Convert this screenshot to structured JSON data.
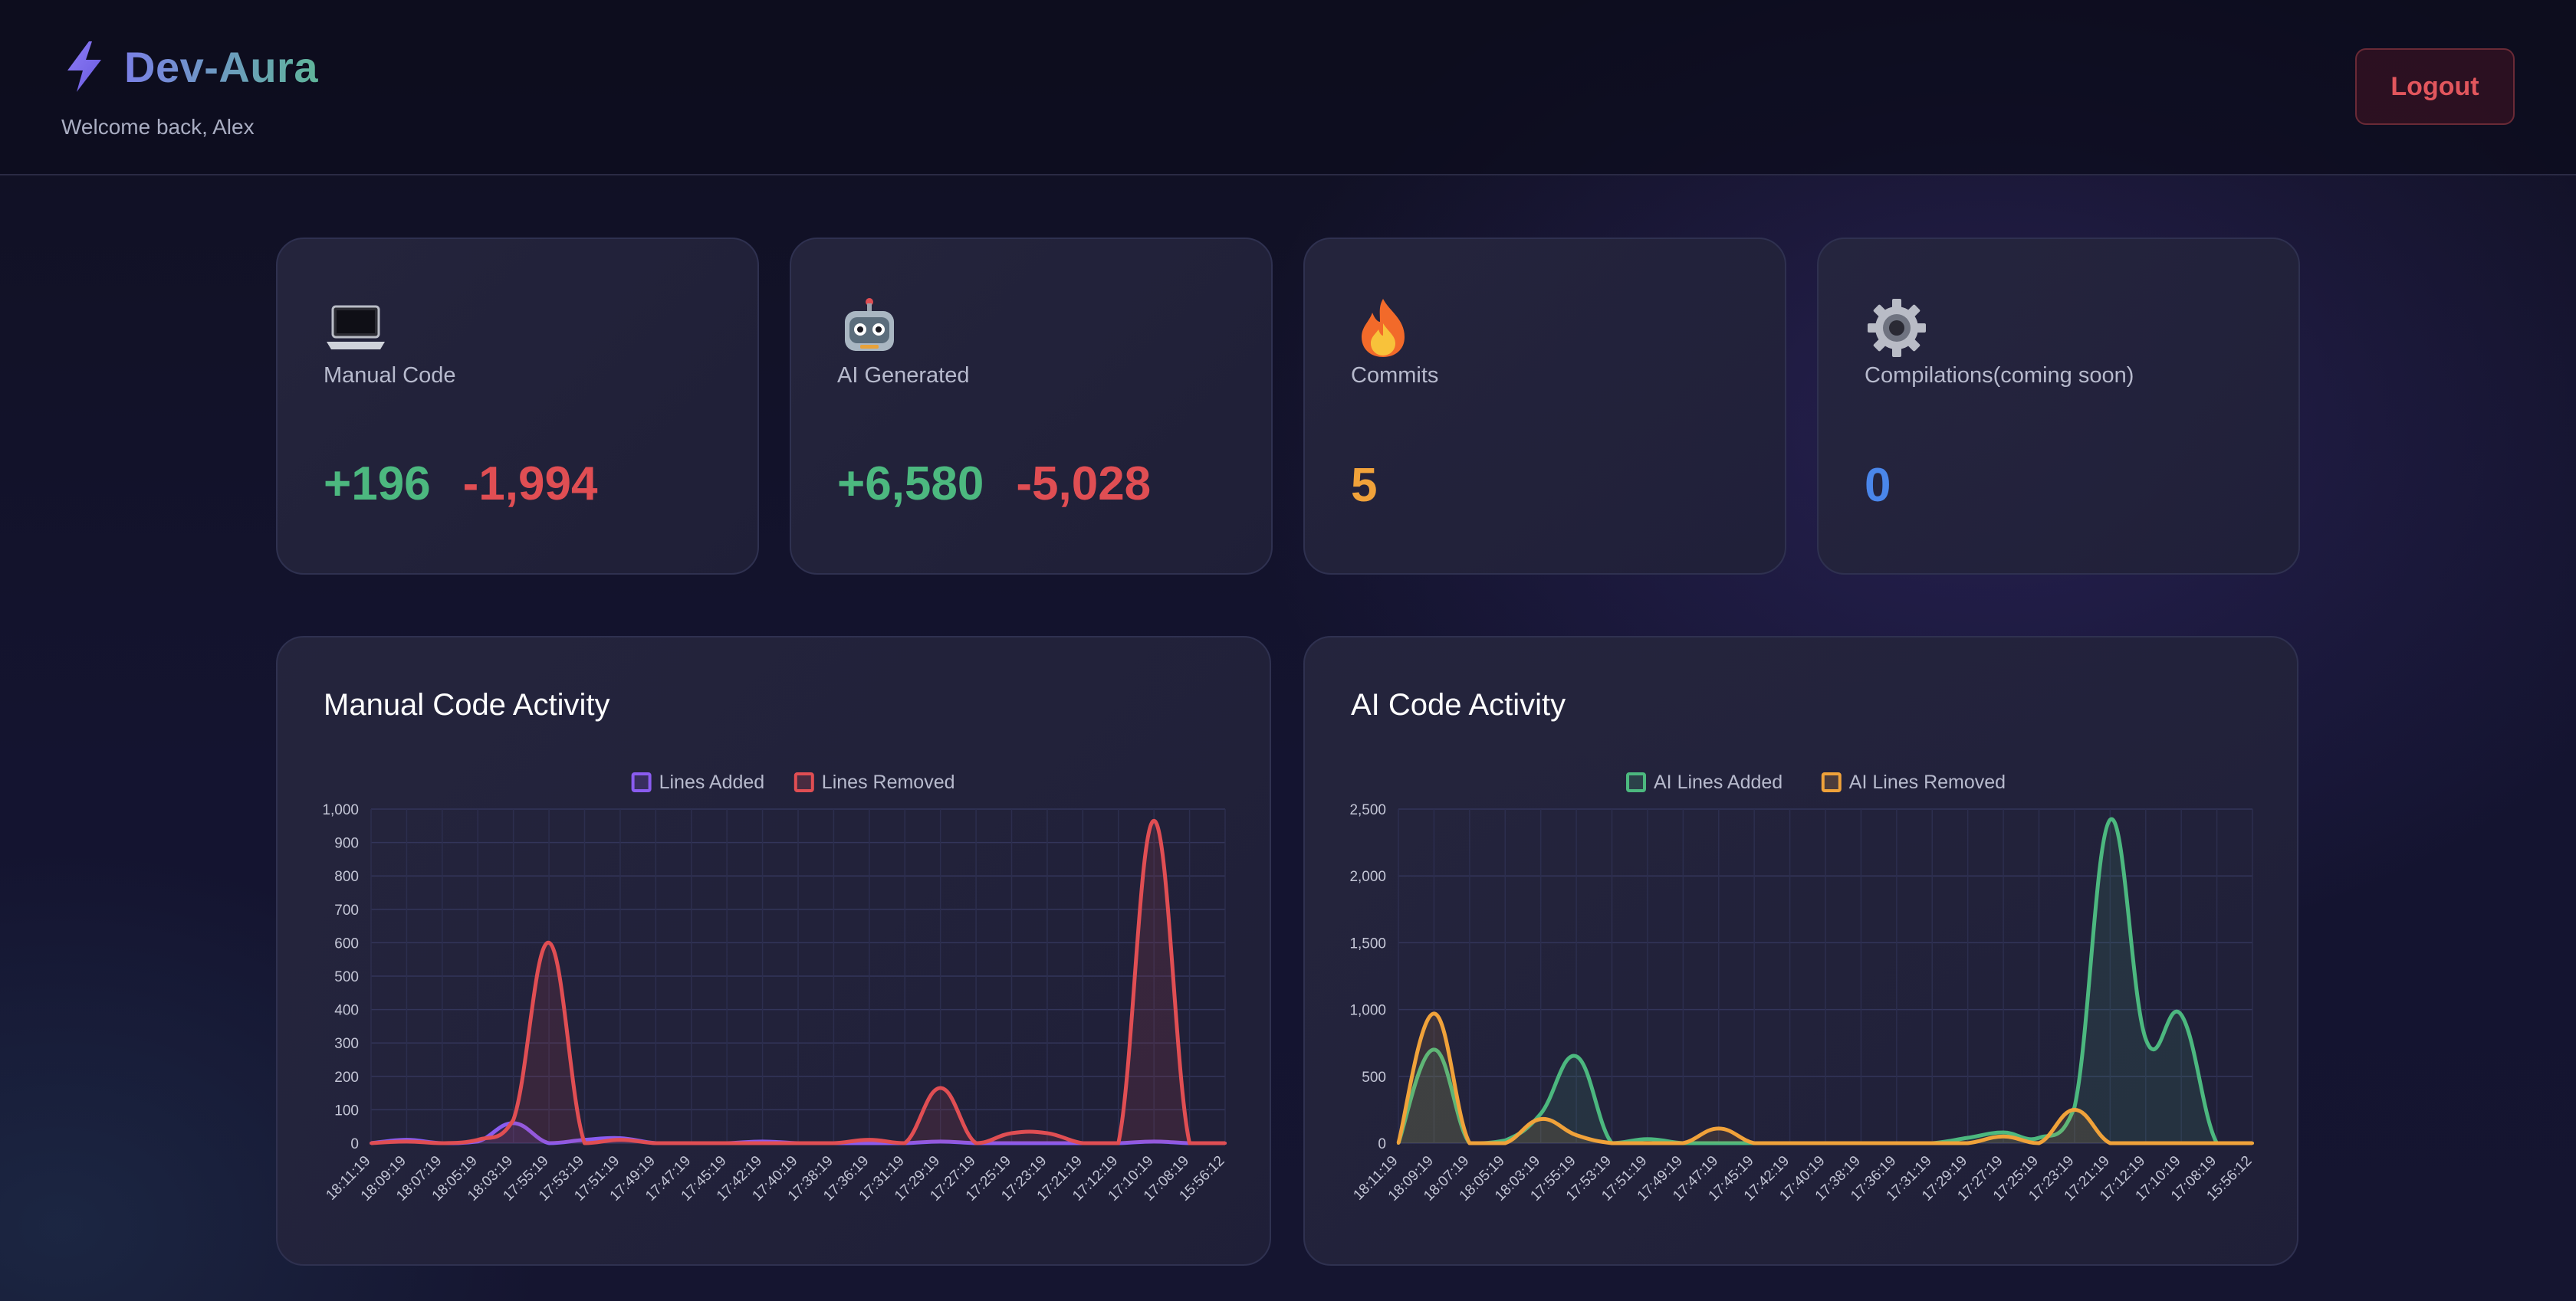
{
  "header": {
    "brand": "Dev-Aura",
    "welcome": "Welcome back, Alex",
    "logout_label": "Logout"
  },
  "stats": [
    {
      "icon": "laptop-icon",
      "label": "Manual Code",
      "added": "+196",
      "removed": "-1,994"
    },
    {
      "icon": "robot-icon",
      "label": "AI Generated",
      "added": "+6,580",
      "removed": "-5,028"
    },
    {
      "icon": "fire-icon",
      "label": "Commits",
      "value": "5"
    },
    {
      "icon": "gear-icon",
      "label": "Compilations(coming soon)",
      "value": "0"
    }
  ],
  "colors": {
    "added_green": "#4cb87f",
    "removed_red": "#e04e53",
    "commits_orange": "#f0a23a",
    "compilations_blue": "#4a86ea",
    "manual_added": "#8a5cf0",
    "manual_removed": "#e04e53",
    "ai_added": "#4cb87f",
    "ai_removed": "#f0a23a"
  },
  "chart_data": [
    {
      "type": "line",
      "title": "Manual Code Activity",
      "legend_position": "top",
      "grid": true,
      "x": [
        "18:11:19",
        "18:09:19",
        "18:07:19",
        "18:05:19",
        "18:03:19",
        "17:55:19",
        "17:53:19",
        "17:51:19",
        "17:49:19",
        "17:47:19",
        "17:45:19",
        "17:42:19",
        "17:40:19",
        "17:38:19",
        "17:36:19",
        "17:31:19",
        "17:29:19",
        "17:27:19",
        "17:25:19",
        "17:23:19",
        "17:21:19",
        "17:12:19",
        "17:10:19",
        "17:08:19",
        "15:56:12"
      ],
      "yticks": [
        0,
        100,
        200,
        300,
        400,
        500,
        600,
        700,
        800,
        900,
        1000
      ],
      "ytick_labels": [
        "0",
        "100",
        "200",
        "300",
        "400",
        "500",
        "600",
        "700",
        "800",
        "900",
        "1,000"
      ],
      "ylim": [
        0,
        1000
      ],
      "series": [
        {
          "name": "Lines Added",
          "color": "#8a5cf0",
          "values": [
            0,
            10,
            0,
            5,
            60,
            0,
            10,
            15,
            0,
            0,
            0,
            5,
            0,
            0,
            0,
            0,
            5,
            0,
            0,
            0,
            0,
            0,
            5,
            0,
            0
          ]
        },
        {
          "name": "Lines Removed",
          "color": "#e04e53",
          "values": [
            0,
            5,
            0,
            10,
            70,
            600,
            0,
            10,
            0,
            0,
            0,
            0,
            0,
            0,
            10,
            0,
            165,
            0,
            30,
            30,
            0,
            0,
            965,
            0,
            0
          ]
        }
      ]
    },
    {
      "type": "line",
      "title": "AI Code Activity",
      "legend_position": "top",
      "grid": true,
      "x": [
        "18:11:19",
        "18:09:19",
        "18:07:19",
        "18:05:19",
        "18:03:19",
        "17:55:19",
        "17:53:19",
        "17:51:19",
        "17:49:19",
        "17:47:19",
        "17:45:19",
        "17:42:19",
        "17:40:19",
        "17:38:19",
        "17:36:19",
        "17:31:19",
        "17:29:19",
        "17:27:19",
        "17:25:19",
        "17:23:19",
        "17:21:19",
        "17:12:19",
        "17:10:19",
        "17:08:19",
        "15:56:12"
      ],
      "yticks": [
        0,
        500,
        1000,
        1500,
        2000,
        2500
      ],
      "ytick_labels": [
        "0",
        "500",
        "1,000",
        "1,500",
        "2,000",
        "2,500"
      ],
      "ylim": [
        0,
        2500
      ],
      "series": [
        {
          "name": "AI Lines Added",
          "color": "#4cb87f",
          "values": [
            0,
            700,
            0,
            20,
            220,
            650,
            0,
            30,
            0,
            0,
            0,
            0,
            0,
            0,
            0,
            0,
            40,
            80,
            40,
            270,
            2420,
            780,
            960,
            0,
            0
          ]
        },
        {
          "name": "AI Lines Removed",
          "color": "#f0a23a",
          "values": [
            0,
            970,
            0,
            0,
            180,
            60,
            0,
            0,
            0,
            110,
            0,
            0,
            0,
            0,
            0,
            0,
            0,
            50,
            0,
            250,
            0,
            0,
            0,
            0,
            0
          ]
        }
      ]
    }
  ]
}
